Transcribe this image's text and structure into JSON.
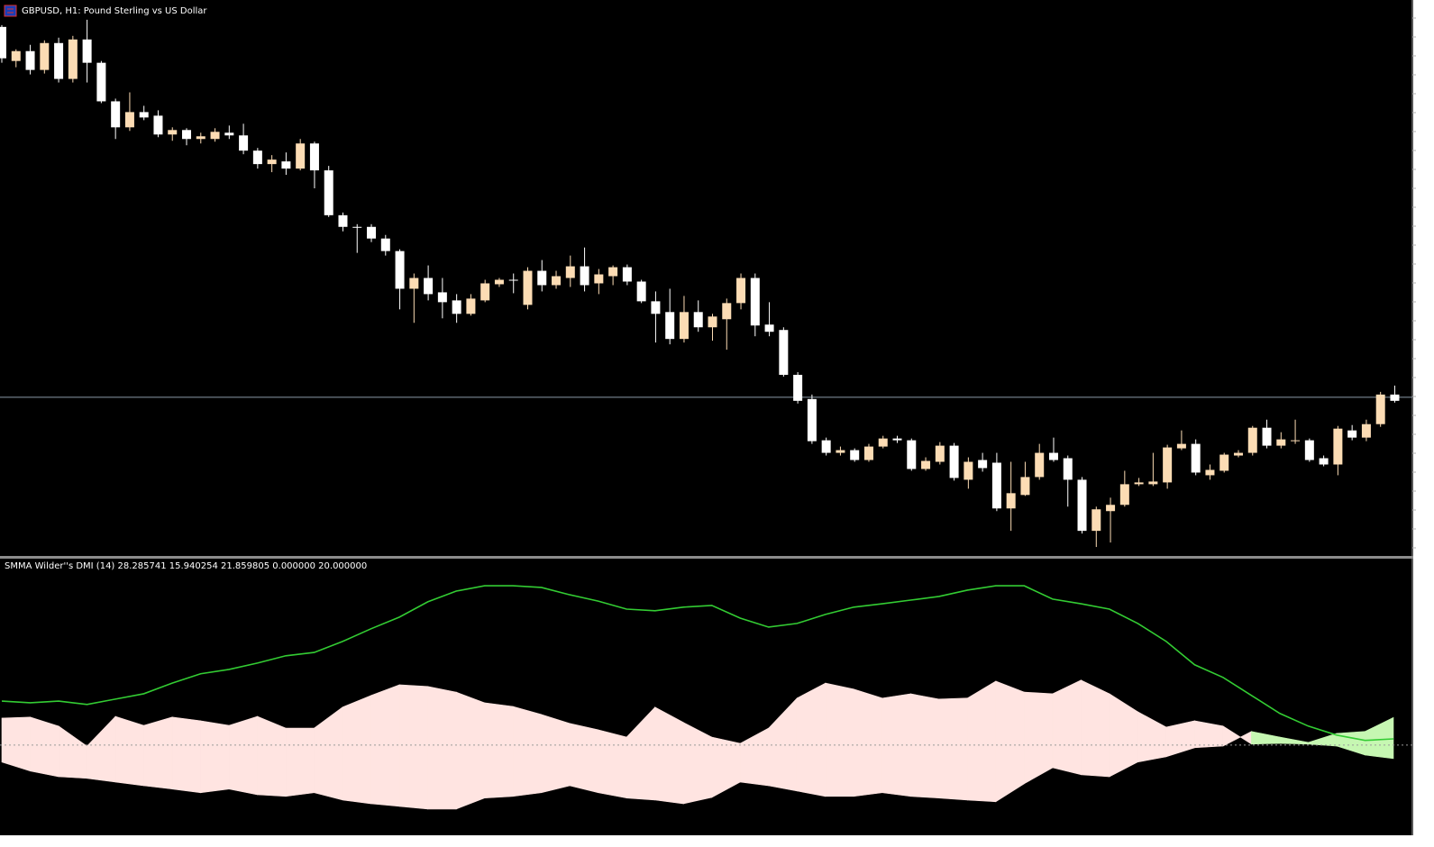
{
  "chart_data": [
    {
      "type": "candlestick",
      "title": "GBPUSD, H1:  Pound Sterling vs US Dollar",
      "ylim": [
        0,
        620
      ],
      "up_color": "#fcdcb4",
      "down_color": "#ffffff",
      "hline": 177,
      "hline_color": "#8a9aa8",
      "ohlc": [
        [
          590,
          592,
          550,
          555
        ],
        [
          552,
          565,
          545,
          563
        ],
        [
          563,
          570,
          537,
          542
        ],
        [
          542,
          575,
          538,
          572
        ],
        [
          572,
          578,
          528,
          532
        ],
        [
          532,
          580,
          528,
          576
        ],
        [
          576,
          598,
          528,
          550
        ],
        [
          550,
          552,
          505,
          507
        ],
        [
          507,
          510,
          465,
          478
        ],
        [
          478,
          517,
          474,
          495
        ],
        [
          495,
          502,
          486,
          489
        ],
        [
          491,
          497,
          467,
          470
        ],
        [
          470,
          478,
          463,
          475
        ],
        [
          475,
          477,
          458,
          465
        ],
        [
          465,
          472,
          460,
          468
        ],
        [
          465,
          477,
          462,
          473
        ],
        [
          472,
          480,
          465,
          469
        ],
        [
          469,
          482,
          448,
          452
        ],
        [
          452,
          455,
          432,
          437
        ],
        [
          437,
          447,
          428,
          442
        ],
        [
          440,
          450,
          425,
          432
        ],
        [
          432,
          465,
          430,
          460
        ],
        [
          460,
          462,
          410,
          430
        ],
        [
          430,
          435,
          378,
          380
        ],
        [
          380,
          383,
          362,
          367
        ],
        [
          367,
          370,
          338,
          366
        ],
        [
          367,
          370,
          350,
          354
        ],
        [
          354,
          358,
          335,
          340
        ],
        [
          340,
          342,
          275,
          298
        ],
        [
          298,
          315,
          260,
          310
        ],
        [
          310,
          324,
          285,
          292
        ],
        [
          294,
          310,
          265,
          283
        ],
        [
          285,
          292,
          260,
          270
        ],
        [
          270,
          292,
          268,
          287
        ],
        [
          285,
          308,
          283,
          304
        ],
        [
          303,
          310,
          300,
          308
        ],
        [
          308,
          315,
          293,
          307
        ],
        [
          280,
          322,
          275,
          318
        ],
        [
          318,
          330,
          295,
          302
        ],
        [
          302,
          318,
          298,
          312
        ],
        [
          310,
          335,
          300,
          323
        ],
        [
          323,
          344,
          295,
          302
        ],
        [
          304,
          320,
          292,
          314
        ],
        [
          312,
          324,
          302,
          322
        ],
        [
          322,
          325,
          302,
          306
        ],
        [
          306,
          308,
          282,
          284
        ],
        [
          284,
          295,
          238,
          270
        ],
        [
          272,
          298,
          236,
          242
        ],
        [
          242,
          290,
          238,
          272
        ],
        [
          272,
          285,
          250,
          255
        ],
        [
          255,
          270,
          240,
          267
        ],
        [
          264,
          287,
          230,
          282
        ],
        [
          282,
          315,
          275,
          310
        ],
        [
          310,
          315,
          245,
          257
        ],
        [
          258,
          283,
          245,
          250
        ],
        [
          252,
          255,
          200,
          202
        ],
        [
          202,
          205,
          170,
          173
        ],
        [
          175,
          180,
          125,
          128
        ],
        [
          129,
          132,
          112,
          115
        ],
        [
          115,
          122,
          112,
          118
        ],
        [
          118,
          120,
          105,
          107
        ],
        [
          107,
          125,
          105,
          122
        ],
        [
          122,
          134,
          120,
          131
        ],
        [
          131,
          134,
          126,
          129
        ],
        [
          129,
          131,
          95,
          97
        ],
        [
          97,
          110,
          95,
          106
        ],
        [
          105,
          127,
          102,
          123
        ],
        [
          123,
          126,
          84,
          87
        ],
        [
          85,
          110,
          75,
          105
        ],
        [
          107,
          115,
          94,
          98
        ],
        [
          104,
          115,
          50,
          53
        ],
        [
          53,
          105,
          28,
          70
        ],
        [
          68,
          105,
          67,
          88
        ],
        [
          88,
          125,
          85,
          115
        ],
        [
          115,
          132,
          105,
          107
        ],
        [
          109,
          112,
          55,
          85
        ],
        [
          85,
          88,
          25,
          28
        ],
        [
          28,
          55,
          10,
          52
        ],
        [
          50,
          65,
          15,
          57
        ],
        [
          57,
          95,
          55,
          80
        ],
        [
          80,
          87,
          78,
          82
        ],
        [
          80,
          115,
          78,
          83
        ],
        [
          82,
          124,
          75,
          121
        ],
        [
          120,
          140,
          118,
          125
        ],
        [
          125,
          130,
          90,
          93
        ],
        [
          90,
          102,
          85,
          96
        ],
        [
          95,
          115,
          93,
          113
        ],
        [
          112,
          118,
          110,
          115
        ],
        [
          115,
          145,
          112,
          143
        ],
        [
          143,
          152,
          120,
          123
        ],
        [
          123,
          138,
          120,
          130
        ],
        [
          128,
          152,
          125,
          129
        ],
        [
          129,
          131,
          105,
          107
        ],
        [
          109,
          112,
          100,
          102
        ],
        [
          102,
          145,
          90,
          142
        ],
        [
          140,
          146,
          129,
          132
        ],
        [
          132,
          152,
          128,
          147
        ],
        [
          147,
          183,
          144,
          180
        ],
        [
          180,
          190,
          171,
          173
        ]
      ]
    },
    {
      "type": "dmi",
      "title": "SMMA Wilder''s DMI (14) 28.285741 15.940254 21.859805 0.000000 20.000000",
      "ylim": [
        -6.8,
        75.4
      ],
      "levels": [
        20
      ],
      "series": [
        {
          "color": "#ffe4e1",
          "values": [
            28.1,
            28.4,
            25.7,
            19.7,
            28.6,
            25.9,
            28.4,
            27.3,
            25.9,
            28.6,
            25.1,
            25.1,
            31.4,
            34.9,
            38.1,
            37.6,
            35.9,
            32.7,
            31.6,
            29.2,
            26.5,
            24.6,
            22.4,
            31.4,
            26.8,
            22.4,
            20.5,
            25.1,
            34.1,
            38.6,
            36.8,
            34.1,
            35.4,
            33.8,
            34.1,
            39.2,
            35.9,
            35.4,
            39.5,
            35.4,
            30.0,
            25.4,
            27.3,
            25.7,
            20.3,
            20.5,
            20.3,
            19.7,
            17.0,
            15.94
          ]
        },
        {
          "color": "#c6f7b2",
          "values": [
            14.9,
            12.2,
            10.5,
            10.0,
            8.9,
            7.8,
            6.8,
            5.7,
            6.8,
            5.1,
            4.6,
            5.7,
            3.5,
            2.4,
            1.6,
            0.8,
            0.8,
            4.1,
            4.6,
            5.7,
            7.8,
            5.7,
            4.1,
            3.5,
            2.4,
            4.3,
            8.9,
            7.8,
            6.2,
            4.6,
            4.6,
            5.7,
            4.6,
            4.1,
            3.5,
            3.0,
            8.4,
            13.2,
            11.1,
            10.5,
            14.9,
            16.5,
            19.2,
            19.7,
            24.1,
            22.4,
            20.8,
            23.5,
            24.1,
            28.29
          ]
        },
        {
          "color": "#33cc33",
          "values": [
            33.2,
            32.7,
            33.2,
            32.2,
            33.8,
            35.4,
            38.6,
            41.4,
            42.7,
            44.6,
            46.8,
            47.8,
            51.1,
            54.9,
            58.4,
            63.0,
            66.2,
            67.8,
            67.8,
            67.3,
            65.1,
            63.2,
            60.8,
            60.3,
            61.4,
            61.9,
            58.1,
            55.4,
            56.5,
            59.2,
            61.4,
            62.4,
            63.5,
            64.6,
            66.5,
            67.8,
            67.8,
            63.8,
            62.4,
            60.8,
            56.5,
            51.1,
            44.1,
            40.3,
            34.9,
            29.5,
            25.7,
            23.0,
            21.4,
            21.86
          ]
        }
      ]
    }
  ]
}
